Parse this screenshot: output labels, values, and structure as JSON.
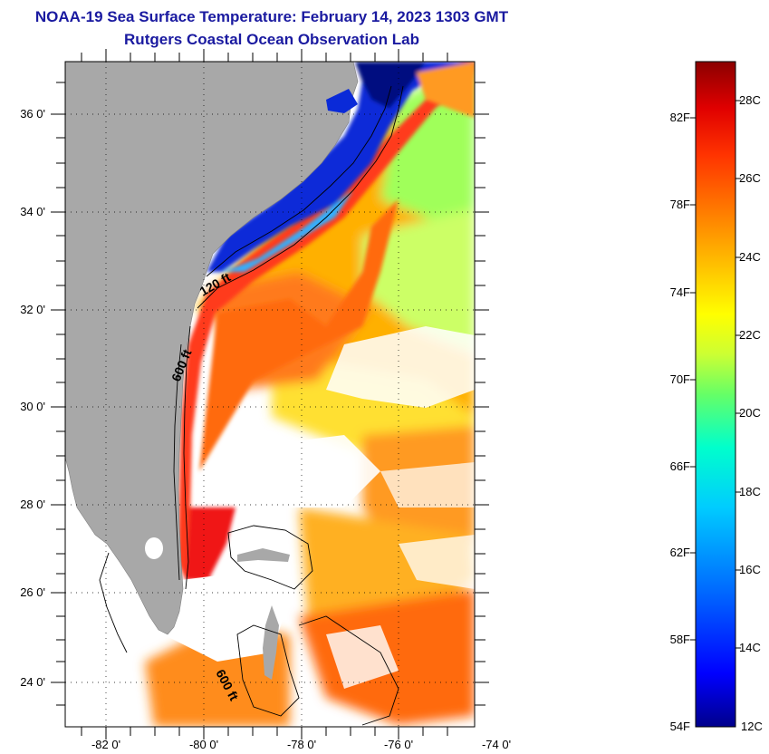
{
  "header": {
    "title": "NOAA-19 Sea Surface Temperature:  February 14, 2023 1303 GMT",
    "subtitle": "Rutgers Coastal Ocean Observation Lab"
  },
  "map": {
    "lat_labels": [
      "36 0'",
      "34 0'",
      "32 0'",
      "30 0'",
      "28 0'",
      "26 0'",
      "24 0'"
    ],
    "lon_labels": [
      "-82 0'",
      "-80 0'",
      "-78 0'",
      "-76 0'",
      "-74 0'"
    ],
    "isobath_labels": [
      "120 ft",
      "600 ft",
      "600 ft"
    ],
    "colors": {
      "land": "#a8a8a8",
      "no_data": "#ffffff",
      "contour": "#000000",
      "title": "#1a1aa0"
    }
  },
  "colorbar": {
    "fahrenheit_labels": [
      "82F",
      "78F",
      "74F",
      "70F",
      "66F",
      "62F",
      "58F",
      "54F"
    ],
    "celsius_labels": [
      "28C",
      "26C",
      "24C",
      "22C",
      "20C",
      "18C",
      "16C",
      "14C",
      "12C"
    ],
    "stops": [
      "#00008b",
      "#0000ff",
      "#0066ff",
      "#00ccff",
      "#00ffcc",
      "#66ff66",
      "#ccff33",
      "#ffff00",
      "#ffcc00",
      "#ff9900",
      "#ff6600",
      "#ff3300",
      "#e00000",
      "#8b0000"
    ]
  }
}
